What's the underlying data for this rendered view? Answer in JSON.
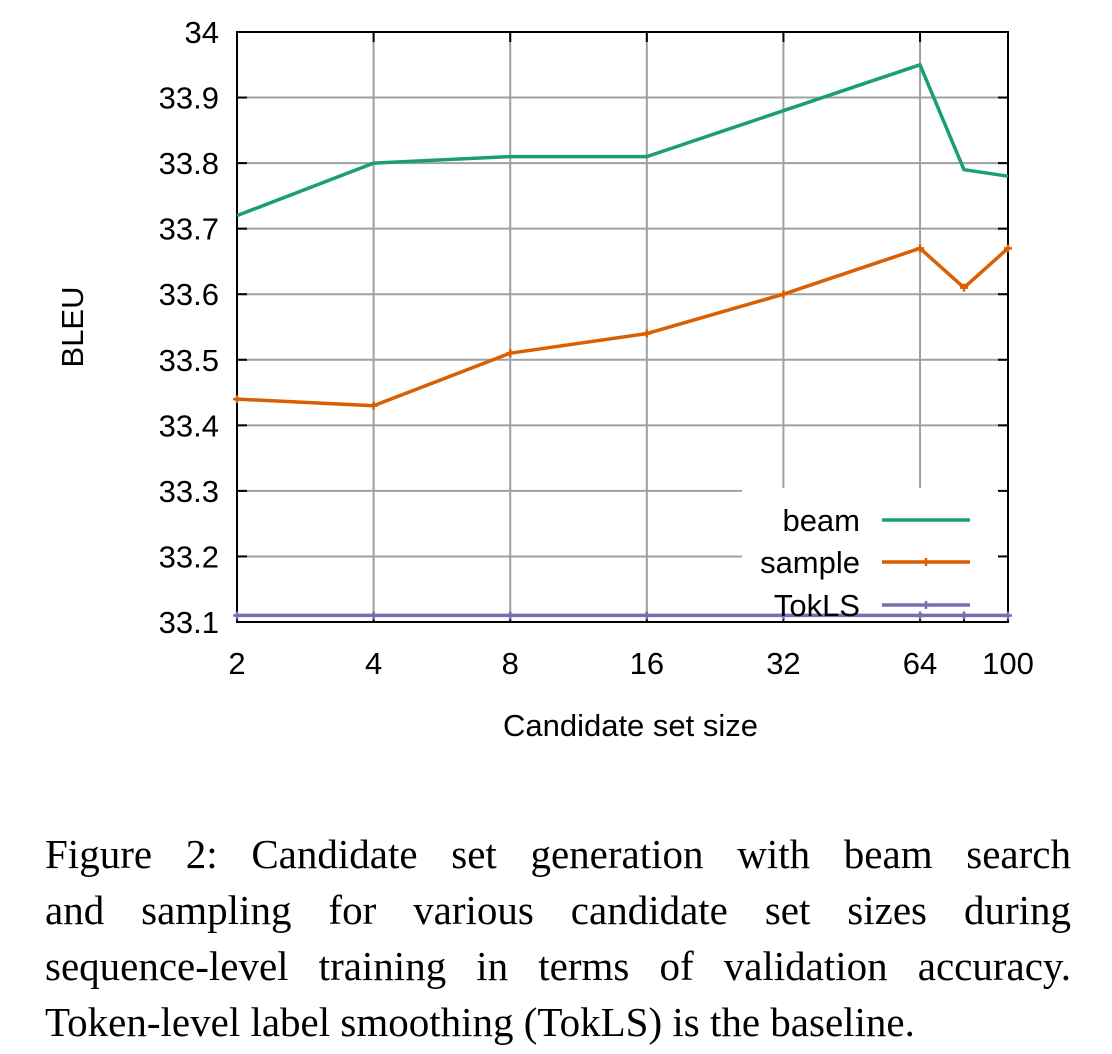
{
  "chart_data": {
    "type": "line",
    "xlabel": "Candidate set size",
    "ylabel": "BLEU",
    "x_scale": "log2",
    "x_ticks": [
      2,
      4,
      8,
      16,
      32,
      64,
      100
    ],
    "x_tick_labels": [
      "2",
      "4",
      "8",
      "16",
      "32",
      "64",
      "100"
    ],
    "xlim": [
      2,
      100
    ],
    "ylim": [
      33.1,
      34.0
    ],
    "y_ticks": [
      33.1,
      33.2,
      33.3,
      33.4,
      33.5,
      33.6,
      33.7,
      33.8,
      33.9,
      34.0
    ],
    "y_tick_labels": [
      "33.1",
      "33.2",
      "33.3",
      "33.4",
      "33.5",
      "33.6",
      "33.7",
      "33.8",
      "33.9",
      "34"
    ],
    "grid": true,
    "legend_position": "bottom-right",
    "series": [
      {
        "name": "beam",
        "color": "#1b9e77",
        "marker": "none",
        "x": [
          2,
          4,
          8,
          16,
          32,
          64,
          80,
          100
        ],
        "y": [
          33.72,
          33.8,
          33.81,
          33.81,
          33.88,
          33.95,
          33.79,
          33.78
        ]
      },
      {
        "name": "sample",
        "color": "#d95f02",
        "marker": "plus",
        "x": [
          2,
          4,
          8,
          16,
          32,
          64,
          80,
          100
        ],
        "y": [
          33.44,
          33.43,
          33.51,
          33.54,
          33.6,
          33.67,
          33.61,
          33.67
        ]
      },
      {
        "name": "TokLS",
        "color": "#7570b3",
        "marker": "plus",
        "x": [
          2,
          4,
          8,
          16,
          32,
          64,
          80,
          100
        ],
        "y": [
          33.11,
          33.11,
          33.11,
          33.11,
          33.11,
          33.11,
          33.11,
          33.11
        ]
      }
    ]
  },
  "caption": {
    "lines": [
      "Figure 2: Candidate set generation with beam search",
      "and sampling for various candidate set sizes during",
      "sequence-level training in terms of validation accuracy.",
      "Token-level label smoothing (TokLS) is the baseline."
    ]
  }
}
